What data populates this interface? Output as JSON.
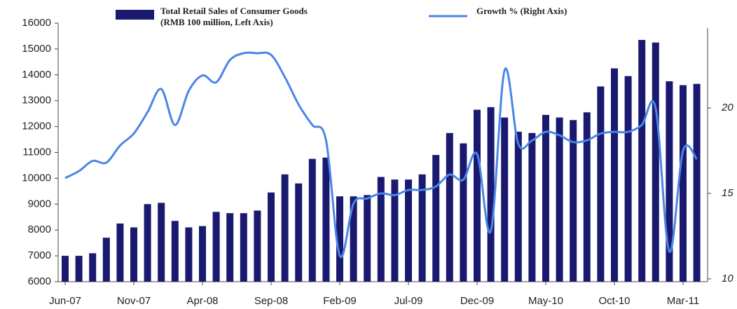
{
  "chart_data": {
    "type": "bar-line",
    "categories": [
      "Jun-07",
      null,
      null,
      null,
      null,
      "Nov-07",
      null,
      null,
      null,
      null,
      "Apr-08",
      null,
      null,
      null,
      null,
      "Sep-08",
      null,
      null,
      null,
      null,
      "Feb-09",
      null,
      null,
      null,
      null,
      "Jul-09",
      null,
      null,
      null,
      null,
      "Dec-09",
      null,
      null,
      null,
      null,
      "May-10",
      null,
      null,
      null,
      null,
      "Oct-10",
      null,
      null,
      null,
      null,
      "Mar-11",
      null
    ],
    "series": [
      {
        "name": "Total Retail Sales of Consumer Goods (RMB 100 million, Left Axis)",
        "type": "bar",
        "color": "#191970",
        "axis": "y",
        "values": [
          7000,
          7000,
          7100,
          7700,
          8250,
          8100,
          9000,
          9050,
          8350,
          8100,
          8150,
          8700,
          8650,
          8650,
          8750,
          9450,
          10150,
          9800,
          10750,
          10800,
          9300,
          9300,
          9350,
          10050,
          9950,
          9950,
          10150,
          10900,
          11750,
          11350,
          12650,
          12750,
          12350,
          11800,
          11750,
          12450,
          12350,
          12250,
          12550,
          13550,
          14250,
          13950,
          15350,
          15250,
          13750,
          13600,
          13650
        ]
      },
      {
        "name": "Growth % (Right Axis)",
        "type": "line",
        "color": "#4a86e8",
        "axis": "y2",
        "values": [
          15.9,
          16.3,
          16.9,
          16.8,
          17.8,
          18.5,
          19.75,
          21.1,
          19.0,
          21.0,
          21.9,
          21.5,
          22.8,
          23.2,
          23.2,
          23.1,
          21.8,
          20.2,
          19.0,
          18.1,
          11.35,
          14.4,
          14.7,
          15.0,
          14.9,
          15.2,
          15.2,
          15.4,
          16.1,
          15.8,
          17.3,
          12.8,
          22.2,
          17.9,
          18.1,
          18.6,
          18.4,
          18.0,
          18.1,
          18.5,
          18.6,
          18.6,
          19.0,
          20.0,
          11.6,
          17.5,
          17.0
        ]
      }
    ],
    "ylim": [
      6000,
      16000
    ],
    "yticks": [
      6000,
      7000,
      8000,
      9000,
      10000,
      11000,
      12000,
      13000,
      14000,
      15000,
      16000
    ],
    "y2lim": [
      10,
      25
    ],
    "y2ticks": [
      10,
      15,
      20
    ],
    "grid": false,
    "legend": "top"
  }
}
